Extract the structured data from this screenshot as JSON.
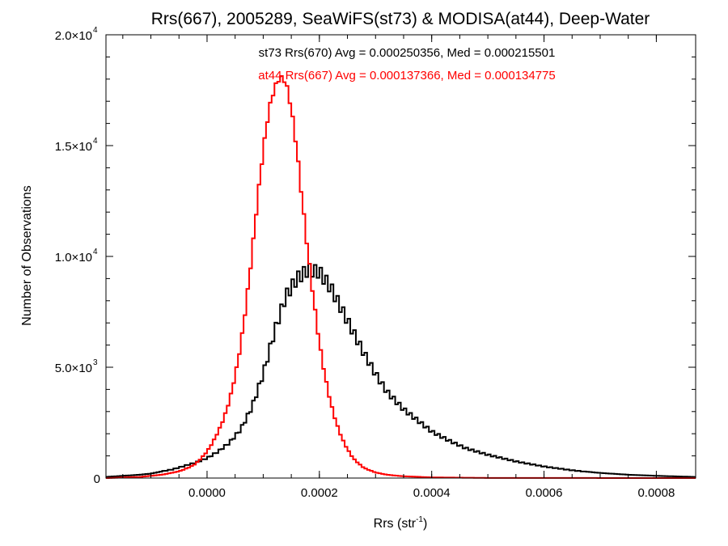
{
  "chart_data": {
    "type": "line",
    "title": "Rrs(667), 2005289, SeaWiFS(st73) & MODISA(at44), Deep-Water",
    "xlabel_base": "Rrs (str",
    "xlabel_sup": "-1",
    "xlabel_close": ")",
    "ylabel": "Number of Observations",
    "xlim": [
      -0.00018,
      0.00087
    ],
    "ylim": [
      0,
      20000
    ],
    "x_ticks": [
      {
        "value": 0.0,
        "label": "0.0000"
      },
      {
        "value": 0.0002,
        "label": "0.0002"
      },
      {
        "value": 0.0004,
        "label": "0.0004"
      },
      {
        "value": 0.0006,
        "label": "0.0006"
      },
      {
        "value": 0.0008,
        "label": "0.0008"
      }
    ],
    "y_ticks": [
      {
        "value": 0,
        "label": "0",
        "exp": ""
      },
      {
        "value": 5000,
        "label": "5.0×10",
        "exp": "3"
      },
      {
        "value": 10000,
        "label": "1.0×10",
        "exp": "4"
      },
      {
        "value": 15000,
        "label": "1.5×10",
        "exp": "4"
      },
      {
        "value": 20000,
        "label": "2.0×10",
        "exp": "4"
      }
    ],
    "annotations": [
      {
        "text": "st73 Rrs(670) Avg = 0.000250356, Med = 0.000215501",
        "color": "#000000"
      },
      {
        "text": "at44 Rrs(667) Avg = 0.000137366, Med = 0.000134775",
        "color": "#ff0000"
      }
    ],
    "series": [
      {
        "color": "#000000",
        "style": "step-histogram",
        "x": [
          -0.00018,
          -0.00015,
          -0.00012,
          -0.0001,
          -8e-05,
          -6e-05,
          -4e-05,
          -2e-05,
          0.0,
          2e-05,
          4e-05,
          6e-05,
          8e-05,
          0.0001,
          0.00012,
          0.00014,
          0.00016,
          0.00018,
          0.0002,
          0.00022,
          0.00024,
          0.00026,
          0.00028,
          0.0003,
          0.00032,
          0.00035,
          0.00038,
          0.0004,
          0.00043,
          0.00046,
          0.0005,
          0.00055,
          0.0006,
          0.00065,
          0.0007,
          0.00075,
          0.0008,
          0.00087
        ],
        "y": [
          50,
          100,
          150,
          200,
          300,
          400,
          550,
          700,
          900,
          1200,
          1600,
          2200,
          3200,
          4700,
          6600,
          8200,
          9000,
          9400,
          9300,
          8600,
          7600,
          6600,
          5600,
          4700,
          3900,
          3100,
          2500,
          2100,
          1700,
          1350,
          1050,
          750,
          520,
          350,
          230,
          150,
          100,
          50
        ],
        "jitter": 280
      },
      {
        "color": "#ff0000",
        "style": "step-histogram",
        "x": [
          -0.00018,
          -0.00012,
          -8e-05,
          -5e-05,
          -3e-05,
          -2e-05,
          -1e-05,
          0.0,
          1e-05,
          2e-05,
          3e-05,
          4e-05,
          5e-05,
          6e-05,
          7e-05,
          8e-05,
          9e-05,
          0.0001,
          0.00011,
          0.00012,
          0.00013,
          0.00014,
          0.00015,
          0.00016,
          0.00017,
          0.00018,
          0.00019,
          0.0002,
          0.00021,
          0.00022,
          0.00023,
          0.00024,
          0.00025,
          0.00026,
          0.00027,
          0.00028,
          0.0003,
          0.00032,
          0.00035,
          0.0004,
          0.0005,
          0.00087
        ],
        "y": [
          0,
          50,
          150,
          300,
          500,
          650,
          900,
          1200,
          1600,
          2100,
          2700,
          3500,
          4600,
          6000,
          7900,
          10100,
          12600,
          14800,
          16600,
          17600,
          18100,
          17900,
          16700,
          14800,
          12400,
          10100,
          8000,
          6100,
          4600,
          3400,
          2500,
          1800,
          1300,
          900,
          650,
          450,
          250,
          150,
          80,
          30,
          5,
          0
        ],
        "jitter": 90
      }
    ]
  }
}
